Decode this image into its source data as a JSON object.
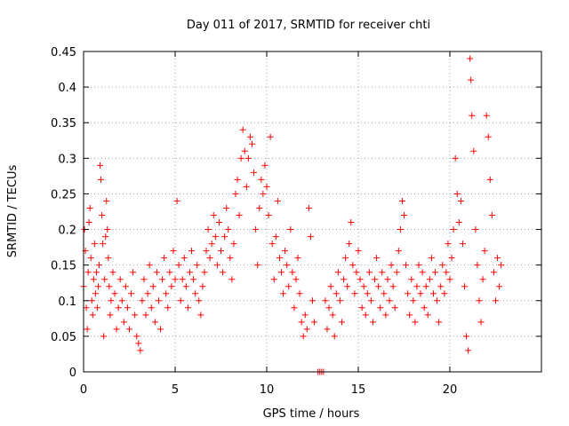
{
  "chart_data": {
    "type": "scatter",
    "title": "Day 011 of 2017, SRMTID for receiver chti",
    "xlabel": "GPS time / hours",
    "ylabel": "SRMTID / TECUs",
    "xlim": [
      0,
      25
    ],
    "ylim": [
      0,
      0.45
    ],
    "xticks": [
      "0",
      "5",
      "10",
      "15",
      "20"
    ],
    "yticks": [
      "0",
      "0.05",
      "0.1",
      "0.15",
      "0.2",
      "0.25",
      "0.3",
      "0.35",
      "0.4",
      "0.45"
    ],
    "grid": true,
    "marker": "+",
    "color": "#ff0000",
    "series": [
      {
        "points": [
          [
            0.0,
            0.12
          ],
          [
            0.05,
            0.2
          ],
          [
            0.1,
            0.17
          ],
          [
            0.15,
            0.09
          ],
          [
            0.2,
            0.06
          ],
          [
            0.25,
            0.14
          ],
          [
            0.3,
            0.21
          ],
          [
            0.35,
            0.23
          ],
          [
            0.4,
            0.16
          ],
          [
            0.45,
            0.1
          ],
          [
            0.5,
            0.08
          ],
          [
            0.55,
            0.13
          ],
          [
            0.6,
            0.18
          ],
          [
            0.65,
            0.11
          ],
          [
            0.7,
            0.14
          ],
          [
            0.75,
            0.09
          ],
          [
            0.8,
            0.12
          ],
          [
            0.85,
            0.15
          ],
          [
            0.9,
            0.29
          ],
          [
            0.95,
            0.27
          ],
          [
            1.0,
            0.22
          ],
          [
            1.05,
            0.18
          ],
          [
            1.1,
            0.05
          ],
          [
            1.15,
            0.13
          ],
          [
            1.2,
            0.19
          ],
          [
            1.25,
            0.24
          ],
          [
            1.3,
            0.2
          ],
          [
            1.35,
            0.16
          ],
          [
            1.4,
            0.12
          ],
          [
            1.45,
            0.08
          ],
          [
            1.5,
            0.1
          ],
          [
            1.6,
            0.14
          ],
          [
            1.7,
            0.11
          ],
          [
            1.8,
            0.06
          ],
          [
            1.9,
            0.09
          ],
          [
            2.0,
            0.13
          ],
          [
            2.1,
            0.1
          ],
          [
            2.2,
            0.07
          ],
          [
            2.3,
            0.12
          ],
          [
            2.4,
            0.09
          ],
          [
            2.5,
            0.06
          ],
          [
            2.6,
            0.11
          ],
          [
            2.7,
            0.14
          ],
          [
            2.8,
            0.08
          ],
          [
            2.9,
            0.05
          ],
          [
            3.0,
            0.04
          ],
          [
            3.1,
            0.03
          ],
          [
            3.2,
            0.1
          ],
          [
            3.3,
            0.13
          ],
          [
            3.4,
            0.08
          ],
          [
            3.5,
            0.11
          ],
          [
            3.6,
            0.15
          ],
          [
            3.7,
            0.09
          ],
          [
            3.8,
            0.12
          ],
          [
            3.9,
            0.07
          ],
          [
            4.0,
            0.14
          ],
          [
            4.1,
            0.1
          ],
          [
            4.2,
            0.06
          ],
          [
            4.3,
            0.13
          ],
          [
            4.4,
            0.16
          ],
          [
            4.5,
            0.11
          ],
          [
            4.6,
            0.09
          ],
          [
            4.7,
            0.14
          ],
          [
            4.8,
            0.12
          ],
          [
            4.9,
            0.17
          ],
          [
            5.0,
            0.13
          ],
          [
            5.1,
            0.24
          ],
          [
            5.2,
            0.15
          ],
          [
            5.3,
            0.1
          ],
          [
            5.4,
            0.13
          ],
          [
            5.5,
            0.16
          ],
          [
            5.6,
            0.12
          ],
          [
            5.7,
            0.09
          ],
          [
            5.8,
            0.14
          ],
          [
            5.9,
            0.17
          ],
          [
            6.0,
            0.13
          ],
          [
            6.1,
            0.11
          ],
          [
            6.2,
            0.15
          ],
          [
            6.3,
            0.1
          ],
          [
            6.4,
            0.08
          ],
          [
            6.5,
            0.12
          ],
          [
            6.6,
            0.14
          ],
          [
            6.7,
            0.17
          ],
          [
            6.8,
            0.2
          ],
          [
            6.9,
            0.16
          ],
          [
            7.0,
            0.18
          ],
          [
            7.1,
            0.22
          ],
          [
            7.2,
            0.19
          ],
          [
            7.3,
            0.15
          ],
          [
            7.4,
            0.21
          ],
          [
            7.5,
            0.17
          ],
          [
            7.6,
            0.14
          ],
          [
            7.7,
            0.19
          ],
          [
            7.8,
            0.23
          ],
          [
            7.9,
            0.2
          ],
          [
            8.0,
            0.16
          ],
          [
            8.1,
            0.13
          ],
          [
            8.2,
            0.18
          ],
          [
            8.3,
            0.25
          ],
          [
            8.4,
            0.27
          ],
          [
            8.5,
            0.22
          ],
          [
            8.6,
            0.3
          ],
          [
            8.7,
            0.34
          ],
          [
            8.8,
            0.31
          ],
          [
            8.9,
            0.26
          ],
          [
            9.0,
            0.3
          ],
          [
            9.1,
            0.33
          ],
          [
            9.2,
            0.32
          ],
          [
            9.3,
            0.28
          ],
          [
            9.4,
            0.2
          ],
          [
            9.5,
            0.15
          ],
          [
            9.6,
            0.23
          ],
          [
            9.7,
            0.27
          ],
          [
            9.8,
            0.25
          ],
          [
            9.9,
            0.29
          ],
          [
            10.0,
            0.26
          ],
          [
            10.1,
            0.22
          ],
          [
            10.2,
            0.33
          ],
          [
            10.3,
            0.18
          ],
          [
            10.4,
            0.13
          ],
          [
            10.5,
            0.19
          ],
          [
            10.6,
            0.24
          ],
          [
            10.7,
            0.16
          ],
          [
            10.8,
            0.14
          ],
          [
            10.9,
            0.11
          ],
          [
            11.0,
            0.17
          ],
          [
            11.1,
            0.15
          ],
          [
            11.2,
            0.12
          ],
          [
            11.3,
            0.2
          ],
          [
            11.4,
            0.14
          ],
          [
            11.5,
            0.09
          ],
          [
            11.6,
            0.13
          ],
          [
            11.7,
            0.16
          ],
          [
            11.8,
            0.11
          ],
          [
            11.9,
            0.07
          ],
          [
            12.0,
            0.05
          ],
          [
            12.1,
            0.08
          ],
          [
            12.2,
            0.06
          ],
          [
            12.3,
            0.23
          ],
          [
            12.4,
            0.19
          ],
          [
            12.5,
            0.1
          ],
          [
            12.6,
            0.07
          ],
          [
            12.8,
            0.0
          ],
          [
            12.9,
            0.0
          ],
          [
            13.0,
            0.0
          ],
          [
            13.1,
            0.0
          ],
          [
            13.2,
            0.1
          ],
          [
            13.3,
            0.06
          ],
          [
            13.4,
            0.09
          ],
          [
            13.5,
            0.12
          ],
          [
            13.6,
            0.08
          ],
          [
            13.7,
            0.05
          ],
          [
            13.8,
            0.11
          ],
          [
            13.9,
            0.14
          ],
          [
            14.0,
            0.1
          ],
          [
            14.1,
            0.07
          ],
          [
            14.2,
            0.13
          ],
          [
            14.3,
            0.16
          ],
          [
            14.4,
            0.12
          ],
          [
            14.5,
            0.18
          ],
          [
            14.6,
            0.21
          ],
          [
            14.7,
            0.15
          ],
          [
            14.8,
            0.11
          ],
          [
            14.9,
            0.14
          ],
          [
            15.0,
            0.17
          ],
          [
            15.1,
            0.13
          ],
          [
            15.2,
            0.09
          ],
          [
            15.3,
            0.12
          ],
          [
            15.4,
            0.08
          ],
          [
            15.5,
            0.11
          ],
          [
            15.6,
            0.14
          ],
          [
            15.7,
            0.1
          ],
          [
            15.8,
            0.07
          ],
          [
            15.9,
            0.13
          ],
          [
            16.0,
            0.16
          ],
          [
            16.1,
            0.12
          ],
          [
            16.2,
            0.09
          ],
          [
            16.3,
            0.14
          ],
          [
            16.4,
            0.11
          ],
          [
            16.5,
            0.08
          ],
          [
            16.6,
            0.13
          ],
          [
            16.7,
            0.1
          ],
          [
            16.8,
            0.15
          ],
          [
            16.9,
            0.12
          ],
          [
            17.0,
            0.09
          ],
          [
            17.1,
            0.14
          ],
          [
            17.2,
            0.17
          ],
          [
            17.3,
            0.2
          ],
          [
            17.4,
            0.24
          ],
          [
            17.5,
            0.22
          ],
          [
            17.6,
            0.15
          ],
          [
            17.7,
            0.11
          ],
          [
            17.8,
            0.08
          ],
          [
            17.9,
            0.13
          ],
          [
            18.0,
            0.1
          ],
          [
            18.1,
            0.07
          ],
          [
            18.2,
            0.12
          ],
          [
            18.3,
            0.15
          ],
          [
            18.4,
            0.11
          ],
          [
            18.5,
            0.14
          ],
          [
            18.6,
            0.09
          ],
          [
            18.7,
            0.12
          ],
          [
            18.8,
            0.08
          ],
          [
            18.9,
            0.13
          ],
          [
            19.0,
            0.16
          ],
          [
            19.1,
            0.11
          ],
          [
            19.2,
            0.14
          ],
          [
            19.3,
            0.1
          ],
          [
            19.4,
            0.07
          ],
          [
            19.5,
            0.12
          ],
          [
            19.6,
            0.15
          ],
          [
            19.7,
            0.11
          ],
          [
            19.8,
            0.14
          ],
          [
            19.9,
            0.18
          ],
          [
            20.0,
            0.13
          ],
          [
            20.1,
            0.16
          ],
          [
            20.2,
            0.2
          ],
          [
            20.3,
            0.3
          ],
          [
            20.4,
            0.25
          ],
          [
            20.5,
            0.21
          ],
          [
            20.6,
            0.24
          ],
          [
            20.7,
            0.18
          ],
          [
            20.8,
            0.12
          ],
          [
            20.9,
            0.05
          ],
          [
            21.0,
            0.03
          ],
          [
            21.1,
            0.44
          ],
          [
            21.15,
            0.41
          ],
          [
            21.2,
            0.36
          ],
          [
            21.3,
            0.31
          ],
          [
            21.4,
            0.2
          ],
          [
            21.5,
            0.15
          ],
          [
            21.6,
            0.1
          ],
          [
            21.7,
            0.07
          ],
          [
            21.8,
            0.13
          ],
          [
            21.9,
            0.17
          ],
          [
            22.0,
            0.36
          ],
          [
            22.1,
            0.33
          ],
          [
            22.2,
            0.27
          ],
          [
            22.3,
            0.22
          ],
          [
            22.4,
            0.14
          ],
          [
            22.5,
            0.1
          ],
          [
            22.6,
            0.16
          ],
          [
            22.7,
            0.12
          ],
          [
            22.8,
            0.15
          ]
        ]
      }
    ]
  }
}
